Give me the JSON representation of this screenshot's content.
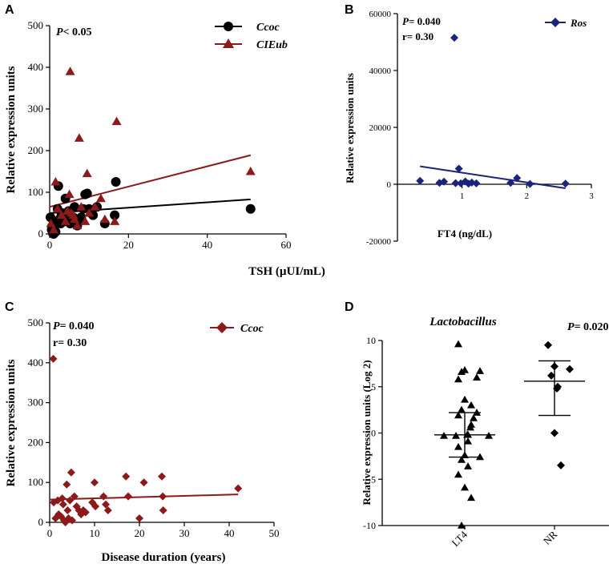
{
  "panel_labels": [
    "A",
    "B",
    "C",
    "D"
  ],
  "chart_data": [
    {
      "type": "scatter",
      "panel": "A",
      "title": "",
      "xlabel": "TSH (µUI/mL)",
      "ylabel": "Relative expression units",
      "xlim": [
        0,
        60
      ],
      "ylim": [
        0,
        500
      ],
      "xticks": [
        0,
        20,
        40,
        60
      ],
      "yticks": [
        0,
        100,
        200,
        300,
        400,
        500
      ],
      "annotations": [
        "P< 0.05"
      ],
      "legend_position": "top-right",
      "series": [
        {
          "name": "Ccoc",
          "marker": "circle",
          "color": "#000000",
          "points": [
            [
              0.2,
              40
            ],
            [
              0.5,
              10
            ],
            [
              0.8,
              2
            ],
            [
              1,
              0
            ],
            [
              1.2,
              20
            ],
            [
              1.5,
              5
            ],
            [
              1.8,
              30
            ],
            [
              2,
              60
            ],
            [
              2.2,
              115
            ],
            [
              2.5,
              35
            ],
            [
              2.8,
              25
            ],
            [
              3,
              45
            ],
            [
              3.2,
              50
            ],
            [
              3.5,
              35
            ],
            [
              3.8,
              30
            ],
            [
              4,
              85
            ],
            [
              4.2,
              40
            ],
            [
              4.5,
              50
            ],
            [
              4.8,
              55
            ],
            [
              5,
              45
            ],
            [
              5.2,
              25
            ],
            [
              5.5,
              30
            ],
            [
              5.8,
              35
            ],
            [
              6,
              40
            ],
            [
              6.3,
              65
            ],
            [
              6.6,
              25
            ],
            [
              7,
              20
            ],
            [
              7.5,
              30
            ],
            [
              8,
              40
            ],
            [
              8.5,
              60
            ],
            [
              9,
              95
            ],
            [
              9.5,
              97
            ],
            [
              10,
              60
            ],
            [
              10.5,
              50
            ],
            [
              11,
              45
            ],
            [
              12,
              65
            ],
            [
              14,
              25
            ],
            [
              16.5,
              45
            ],
            [
              16.8,
              125
            ],
            [
              51,
              60
            ]
          ],
          "trend": [
            [
              0,
              50
            ],
            [
              51,
              83
            ]
          ]
        },
        {
          "name": "CIEub",
          "marker": "triangle",
          "color": "#8b1a1a",
          "points": [
            [
              0.3,
              25
            ],
            [
              1,
              10
            ],
            [
              1.5,
              125
            ],
            [
              2,
              60
            ],
            [
              3,
              45
            ],
            [
              4,
              30
            ],
            [
              4.5,
              55
            ],
            [
              5,
              95
            ],
            [
              5.2,
              390
            ],
            [
              5.5,
              50
            ],
            [
              6,
              45
            ],
            [
              6.3,
              35
            ],
            [
              7,
              20
            ],
            [
              7.5,
              230
            ],
            [
              8,
              65
            ],
            [
              9,
              30
            ],
            [
              9.5,
              145
            ],
            [
              10,
              50
            ],
            [
              11.5,
              65
            ],
            [
              13,
              85
            ],
            [
              14,
              35
            ],
            [
              16.5,
              30
            ],
            [
              17,
              270
            ],
            [
              51,
              150
            ]
          ],
          "trend": [
            [
              0,
              65
            ],
            [
              51,
              189
            ]
          ]
        }
      ]
    },
    {
      "type": "scatter",
      "panel": "B",
      "title": "",
      "xlabel": "FT4 (ng/dL)",
      "ylabel": "Relative expression units",
      "xlim": [
        0,
        3
      ],
      "ylim": [
        -20000,
        60000
      ],
      "xticks": [
        1,
        2,
        3
      ],
      "yticks": [
        -20000,
        0,
        20000,
        40000,
        60000
      ],
      "annotations": [
        "P= 0.040",
        "r= 0.30"
      ],
      "legend_position": "top-right",
      "series": [
        {
          "name": "Ros",
          "marker": "diamond",
          "color": "#1a237e",
          "points": [
            [
              0.35,
              1200
            ],
            [
              0.65,
              500
            ],
            [
              0.72,
              900
            ],
            [
              0.88,
              51500
            ],
            [
              0.9,
              400
            ],
            [
              0.95,
              5500
            ],
            [
              0.98,
              300
            ],
            [
              1.05,
              1000
            ],
            [
              1.1,
              200
            ],
            [
              1.15,
              600
            ],
            [
              1.22,
              300
            ],
            [
              1.75,
              500
            ],
            [
              1.85,
              2200
            ],
            [
              2.05,
              100
            ],
            [
              2.6,
              200
            ]
          ],
          "trend": [
            [
              0.35,
              6300
            ],
            [
              2.6,
              -1400
            ]
          ]
        }
      ]
    },
    {
      "type": "scatter",
      "panel": "C",
      "title": "",
      "xlabel": "Disease duration (years)",
      "ylabel": "Relative expression units",
      "xlim": [
        0,
        50
      ],
      "ylim": [
        0,
        500
      ],
      "xticks": [
        0,
        10,
        20,
        30,
        40,
        50
      ],
      "yticks": [
        0,
        100,
        200,
        300,
        400,
        500
      ],
      "annotations": [
        "P= 0.040",
        "r= 0.30"
      ],
      "legend_position": "top-right",
      "series": [
        {
          "name": "Ccoc",
          "marker": "diamond",
          "color": "#8b1a1a",
          "points": [
            [
              0.8,
              410
            ],
            [
              0.9,
              50
            ],
            [
              1.3,
              10
            ],
            [
              1.8,
              55
            ],
            [
              2,
              20
            ],
            [
              2.5,
              15
            ],
            [
              2.8,
              60
            ],
            [
              3,
              45
            ],
            [
              3.2,
              5
            ],
            [
              3.5,
              0
            ],
            [
              3.8,
              95
            ],
            [
              4,
              30
            ],
            [
              4.2,
              10
            ],
            [
              4.5,
              55
            ],
            [
              4.8,
              125
            ],
            [
              5,
              5
            ],
            [
              5.5,
              65
            ],
            [
              6,
              40
            ],
            [
              6.5,
              30
            ],
            [
              7,
              20
            ],
            [
              7.5,
              30
            ],
            [
              8,
              25
            ],
            [
              9.5,
              50
            ],
            [
              10,
              100
            ],
            [
              10.2,
              40
            ],
            [
              12,
              65
            ],
            [
              12.5,
              45
            ],
            [
              13,
              30
            ],
            [
              17,
              115
            ],
            [
              17.5,
              65
            ],
            [
              20,
              10
            ],
            [
              21,
              100
            ],
            [
              25,
              115
            ],
            [
              25.2,
              65
            ],
            [
              25.3,
              30
            ],
            [
              42,
              85
            ]
          ],
          "trend": [
            [
              0,
              57
            ],
            [
              42,
              70
            ]
          ]
        }
      ]
    },
    {
      "type": "scatter",
      "panel": "D",
      "title": "Lactobacillus",
      "xlabel": "",
      "ylabel": "Relative expression units (Log 2)",
      "categories": [
        "LT4",
        "NR"
      ],
      "ylim": [
        -10,
        10
      ],
      "yticks": [
        -10,
        -5,
        0,
        5,
        10
      ],
      "annotations": [
        "P= 0.020"
      ],
      "series": [
        {
          "name": "LT4",
          "marker": "triangle",
          "color": "#000000",
          "values": [
            9.6,
            6.8,
            6.7,
            6.6,
            6.0,
            5.8,
            3.6,
            3.0,
            2.5,
            2.2,
            1.9,
            1.6,
            0.9,
            0.6,
            -0.2,
            -0.2,
            -0.3,
            -0.3,
            -0.3,
            -0.9,
            -1.5,
            -2.4,
            -2.6,
            -2.9,
            -3.6,
            -4.5,
            -5.9,
            -7.0,
            -10.0
          ],
          "mean": -0.2,
          "sd_range": [
            -2.6,
            2.2
          ]
        },
        {
          "name": "NR",
          "marker": "diamond",
          "color": "#000000",
          "values": [
            9.5,
            7.2,
            6.9,
            6.2,
            5.0,
            4.8,
            0.0,
            -3.5
          ],
          "mean": 5.6,
          "sd_range": [
            1.9,
            7.8
          ]
        }
      ]
    }
  ]
}
